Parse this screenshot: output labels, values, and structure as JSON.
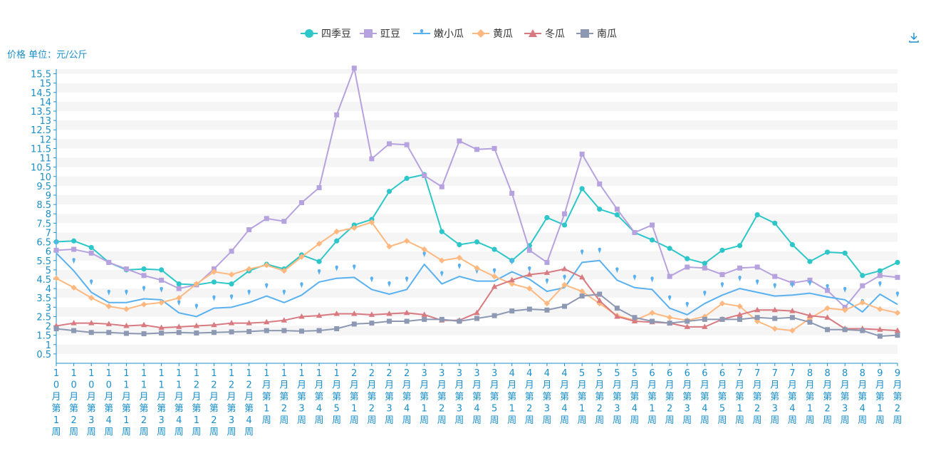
{
  "unit_label": "价格 单位：元/公斤",
  "download_icon": "download-icon",
  "colors": {
    "axis": "#1a8fc9",
    "grid_band": "#f5f5f5"
  },
  "chart_data": {
    "type": "line",
    "title": "",
    "ylabel": "价格 单位：元/公斤",
    "ylim": [
      0,
      15.75
    ],
    "yticks": [
      "0.5",
      "1",
      "1.5",
      "2",
      "2.5",
      "3",
      "3.5",
      "4",
      "4.5",
      "5",
      "5.5",
      "6",
      "6.5",
      "7",
      "7.5",
      "8",
      "8.5",
      "9",
      "9.5",
      "10",
      "10.5",
      "11",
      "11.5",
      "12",
      "12.5",
      "13",
      "13.5",
      "14",
      "14.5",
      "15",
      "15.5"
    ],
    "legend_position": "top-center",
    "categories": [
      "10月第1周",
      "10月第2周",
      "10月第3周",
      "10月第4周",
      "11月第1周",
      "11月第2周",
      "11月第3周",
      "11月第4周",
      "12月第1周",
      "12月第2周",
      "12月第3周",
      "12月第4周",
      "1月第1周",
      "1月第2周",
      "1月第3周",
      "1月第4周",
      "1月第5周",
      "2月第1周",
      "2月第2周",
      "2月第3周",
      "2月第4周",
      "3月第1周",
      "3月第2周",
      "3月第3周",
      "3月第4周",
      "3月第5周",
      "4月第1周",
      "4月第2周",
      "4月第3周",
      "4月第4周",
      "5月第1周",
      "5月第2周",
      "5月第3周",
      "5月第4周",
      "6月第1周",
      "6月第2周",
      "6月第3周",
      "6月第4周",
      "6月第5周",
      "7月第1周",
      "7月第2周",
      "7月第3周",
      "7月第4周",
      "8月第1周",
      "8月第2周",
      "8月第3周",
      "8月第4周",
      "9月第1周",
      "9月第2周"
    ],
    "series": [
      {
        "name": "四季豆",
        "color": "#2ec7c9",
        "marker": "circle",
        "values": [
          6.5,
          6.55,
          6.2,
          5.4,
          5.0,
          5.05,
          5.0,
          4.25,
          4.2,
          4.35,
          4.25,
          4.95,
          5.3,
          5.05,
          5.8,
          5.45,
          6.55,
          7.4,
          7.7,
          9.2,
          9.9,
          10.1,
          7.05,
          6.35,
          6.5,
          6.1,
          5.5,
          6.3,
          7.8,
          7.4,
          9.35,
          8.25,
          7.95,
          7.0,
          6.6,
          6.15,
          5.6,
          5.35,
          6.05,
          6.3,
          7.95,
          7.5,
          6.35,
          5.45,
          5.95,
          5.9,
          4.7,
          4.95,
          5.4
        ]
      },
      {
        "name": "豇豆",
        "color": "#b6a2de",
        "marker": "square",
        "values": [
          6.05,
          6.1,
          5.9,
          5.4,
          5.05,
          4.7,
          4.45,
          4.0,
          4.2,
          5.05,
          6.0,
          7.15,
          7.75,
          7.6,
          8.6,
          9.4,
          13.3,
          15.8,
          10.95,
          11.75,
          11.7,
          10.05,
          9.45,
          11.9,
          11.45,
          11.5,
          9.1,
          6.05,
          5.4,
          8.0,
          11.2,
          9.6,
          8.25,
          7.0,
          7.4,
          4.65,
          5.15,
          5.1,
          4.75,
          5.1,
          5.15,
          4.65,
          4.3,
          4.45,
          3.9,
          3.0,
          4.15,
          4.7,
          4.6
        ]
      },
      {
        "name": "嫩小瓜",
        "color": "#5ab1ef",
        "marker": "pin",
        "values": [
          5.9,
          4.95,
          3.8,
          3.25,
          3.25,
          3.45,
          3.4,
          2.7,
          2.5,
          2.95,
          3.0,
          3.25,
          3.6,
          3.25,
          3.65,
          4.35,
          4.55,
          4.6,
          3.95,
          3.7,
          3.95,
          5.3,
          4.25,
          4.65,
          4.4,
          4.4,
          4.9,
          4.5,
          3.85,
          4.05,
          5.4,
          5.5,
          4.45,
          4.05,
          3.95,
          2.95,
          2.6,
          3.2,
          3.65,
          4.0,
          3.8,
          3.6,
          3.65,
          3.75,
          3.55,
          3.4,
          2.75,
          3.7,
          3.15
        ]
      },
      {
        "name": "黄瓜",
        "color": "#ffb980",
        "marker": "diamond",
        "values": [
          4.55,
          4.05,
          3.5,
          3.05,
          2.9,
          3.15,
          3.25,
          3.5,
          4.25,
          4.9,
          4.75,
          5.05,
          5.25,
          4.95,
          5.7,
          6.4,
          7.05,
          7.25,
          7.55,
          6.25,
          6.55,
          6.1,
          5.5,
          5.65,
          5.1,
          4.65,
          4.25,
          4.0,
          3.2,
          4.2,
          3.85,
          3.2,
          2.55,
          2.3,
          2.7,
          2.45,
          2.3,
          2.5,
          3.2,
          3.05,
          2.25,
          1.85,
          1.75,
          2.4,
          2.95,
          2.85,
          3.25,
          2.9,
          2.7
        ]
      },
      {
        "name": "冬瓜",
        "color": "#d87a80",
        "marker": "triangle",
        "values": [
          2.0,
          2.15,
          2.15,
          2.1,
          2.0,
          2.05,
          1.9,
          1.95,
          2.0,
          2.05,
          2.15,
          2.15,
          2.2,
          2.3,
          2.5,
          2.55,
          2.65,
          2.65,
          2.6,
          2.65,
          2.7,
          2.6,
          2.3,
          2.3,
          2.7,
          4.1,
          4.45,
          4.75,
          4.85,
          5.05,
          4.6,
          3.35,
          2.5,
          2.25,
          2.2,
          2.15,
          1.95,
          1.95,
          2.35,
          2.6,
          2.85,
          2.85,
          2.8,
          2.55,
          2.45,
          1.85,
          1.85,
          1.8,
          1.75
        ]
      },
      {
        "name": "南瓜",
        "color": "#8d98b3",
        "marker": "square",
        "values": [
          1.85,
          1.75,
          1.65,
          1.65,
          1.6,
          1.58,
          1.62,
          1.65,
          1.62,
          1.65,
          1.68,
          1.7,
          1.75,
          1.75,
          1.72,
          1.75,
          1.85,
          2.1,
          2.15,
          2.25,
          2.25,
          2.35,
          2.35,
          2.25,
          2.4,
          2.55,
          2.8,
          2.9,
          2.85,
          3.05,
          3.6,
          3.7,
          2.95,
          2.45,
          2.25,
          2.15,
          2.25,
          2.35,
          2.35,
          2.35,
          2.45,
          2.4,
          2.45,
          2.2,
          1.8,
          1.8,
          1.75,
          1.45,
          1.5
        ]
      }
    ]
  }
}
